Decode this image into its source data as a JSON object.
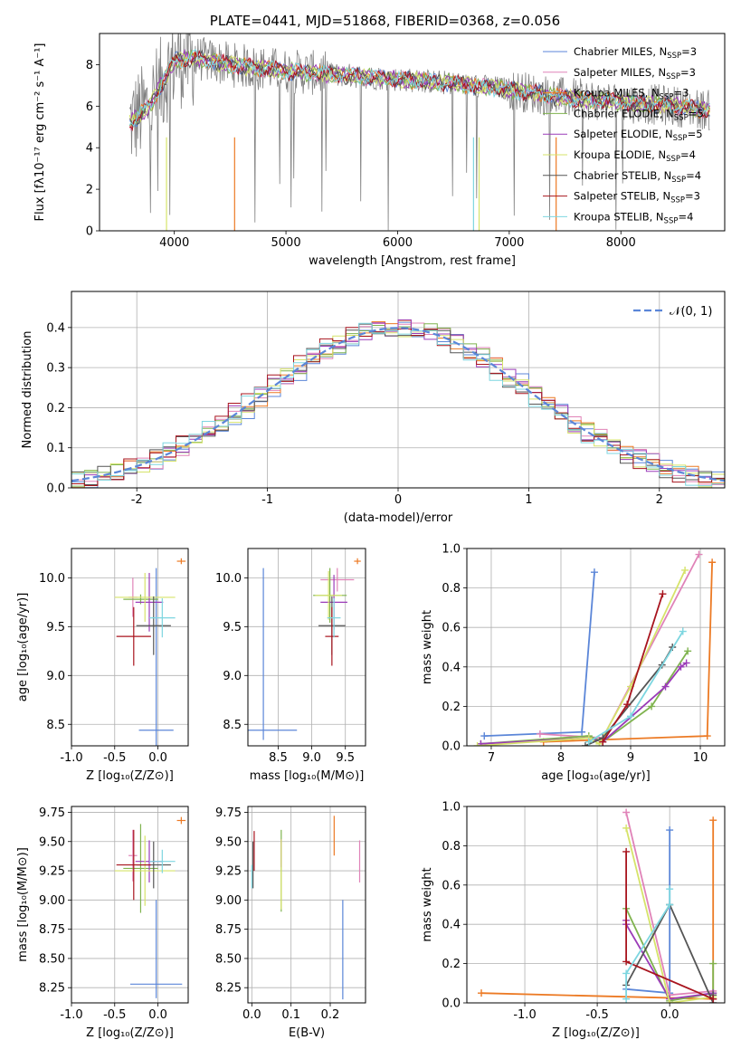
{
  "chart_data": [
    {
      "id": "spectrum",
      "type": "line",
      "title": "PLATE=0441, MJD=51868, FIBERID=0368, z=0.056",
      "xlabel": "wavelength [Angstrom, rest frame]",
      "ylabel": "Flux [fλ10⁻¹⁷ erg cm⁻² s⁻¹ A⁻¹]",
      "xlim": [
        3330,
        8930
      ],
      "ylim": [
        0,
        9.5
      ],
      "xticks": [
        4000,
        5000,
        6000,
        7000,
        8000
      ],
      "yticks": [
        0,
        2,
        4,
        6,
        8
      ],
      "grid": false,
      "legend_position": "right",
      "data_series": {
        "name": "",
        "color": "#808080"
      },
      "model_continuum": {
        "x": [
          3600,
          3700,
          3800,
          3900,
          4000,
          4200,
          4500,
          5000,
          5500,
          6000,
          6500,
          7000,
          7500,
          8000,
          8500,
          8800
        ],
        "y": [
          5.2,
          5.6,
          6.2,
          7.2,
          8.2,
          8.3,
          8.0,
          7.7,
          7.5,
          7.3,
          7.1,
          6.8,
          6.4,
          6.2,
          6.0,
          5.8
        ]
      },
      "legend": [
        {
          "name": "Chabrier MILES, N",
          "sub": "SSP",
          "suffix": "=3",
          "color": "#5b86d8"
        },
        {
          "name": "Salpeter MILES, N",
          "sub": "SSP",
          "suffix": "=3",
          "color": "#e083b8"
        },
        {
          "name": "Kroupa MILES, N",
          "sub": "SSP",
          "suffix": "=3",
          "color": "#ec7a24"
        },
        {
          "name": "Chabrier ELODIE, N",
          "sub": "SSP",
          "suffix": "=5",
          "color": "#7fb34e"
        },
        {
          "name": "Salpeter ELODIE, N",
          "sub": "SSP",
          "suffix": "=5",
          "color": "#9b3bb8"
        },
        {
          "name": "Kroupa ELODIE, N",
          "sub": "SSP",
          "suffix": "=4",
          "color": "#d6e36a"
        },
        {
          "name": "Chabrier STELIB, N",
          "sub": "SSP",
          "suffix": "=4",
          "color": "#555555"
        },
        {
          "name": "Salpeter STELIB, N",
          "sub": "SSP",
          "suffix": "=3",
          "color": "#a8141e"
        },
        {
          "name": "Kroupa STELIB, N",
          "sub": "SSP",
          "suffix": "=4",
          "color": "#7dd6e0"
        }
      ]
    },
    {
      "id": "residuals",
      "type": "histogram",
      "xlabel": "(data-model)/error",
      "ylabel": "Normed distribution",
      "xlim": [
        -2.5,
        2.5
      ],
      "ylim": [
        0,
        0.49
      ],
      "xticks": [
        -2,
        -1,
        0,
        1,
        2
      ],
      "yticks": [
        0.0,
        0.1,
        0.2,
        0.3,
        0.4
      ],
      "grid": true,
      "reference_curve": {
        "name": "𝒩(0, 1)",
        "mean": 0,
        "sigma": 1,
        "color": "#5b86d8"
      },
      "legend_position": "top-right"
    },
    {
      "id": "age-vs-Z",
      "type": "errorbar",
      "xlabel": "Z [log₁₀(Z/Z⊙)]",
      "ylabel": "age  [log₁₀(age/yr)]",
      "xlim": [
        -1.0,
        0.35
      ],
      "ylim": [
        8.28,
        10.3
      ],
      "xticks": [
        -1.0,
        -0.5,
        0.0
      ],
      "yticks": [
        8.5,
        9.0,
        9.5,
        10.0
      ],
      "grid": true,
      "points": [
        {
          "model": "Chabrier MILES",
          "x": -0.02,
          "xerr": 0.2,
          "y": 8.44,
          "yerr": [
            0.44,
            1.66
          ]
        },
        {
          "model": "Salpeter MILES",
          "x": -0.29,
          "xerr": 0.05,
          "y": 9.8,
          "yerr": 0.2
        },
        {
          "model": "Kroupa MILES",
          "x": 0.27,
          "xerr": 0.05,
          "y": 10.17,
          "yerr": 0.03
        },
        {
          "model": "Chabrier ELODIE",
          "x": -0.2,
          "xerr": 0.2,
          "y": 9.78,
          "yerr": 0.05
        },
        {
          "model": "Salpeter ELODIE",
          "x": -0.1,
          "xerr": 0.16,
          "y": 9.75,
          "yerr": 0.3
        },
        {
          "model": "Kroupa ELODIE",
          "x": -0.15,
          "xerr": 0.35,
          "y": 9.8,
          "yerr": 0.25
        },
        {
          "model": "Chabrier STELIB",
          "x": -0.05,
          "xerr": 0.2,
          "y": 9.51,
          "yerr": 0.3
        },
        {
          "model": "Salpeter STELIB",
          "x": -0.28,
          "xerr": 0.2,
          "y": 9.4,
          "yerr": 0.3
        },
        {
          "model": "Kroupa STELIB",
          "x": 0.05,
          "xerr": 0.15,
          "y": 9.59,
          "yerr": 0.2
        }
      ]
    },
    {
      "id": "age-vs-mass",
      "type": "errorbar",
      "xlabel": "mass [log₁₀(M/M⊙)]",
      "ylabel": "",
      "xlim": [
        8.05,
        9.8
      ],
      "ylim": [
        8.28,
        10.3
      ],
      "xticks": [
        8.5,
        9.0,
        9.5
      ],
      "yticks": [
        8.5,
        9.0,
        9.5,
        10.0
      ],
      "grid": true,
      "points": [
        {
          "model": "Chabrier MILES",
          "x": 8.28,
          "xerr": 0.5,
          "y": 8.44,
          "yerr": [
            0.1,
            1.66
          ]
        },
        {
          "model": "Salpeter MILES",
          "x": 9.38,
          "xerr": 0.25,
          "y": 9.98,
          "yerr": 0.12
        },
        {
          "model": "Kroupa MILES",
          "x": 9.68,
          "xerr": 0.05,
          "y": 10.17,
          "yerr": 0.03
        },
        {
          "model": "Chabrier ELODIE",
          "x": 9.27,
          "xerr": 0.25,
          "y": 9.82,
          "yerr": 0.28
        },
        {
          "model": "Salpeter ELODIE",
          "x": 9.33,
          "xerr": 0.2,
          "y": 9.75,
          "yerr": 0.28
        },
        {
          "model": "Kroupa ELODIE",
          "x": 9.25,
          "xerr": 0.2,
          "y": 9.82,
          "yerr": 0.25
        },
        {
          "model": "Chabrier STELIB",
          "x": 9.3,
          "xerr": 0.2,
          "y": 9.51,
          "yerr": 0.3
        },
        {
          "model": "Salpeter STELIB",
          "x": 9.3,
          "xerr": 0.1,
          "y": 9.4,
          "yerr": 0.3
        },
        {
          "model": "Kroupa STELIB",
          "x": 9.33,
          "xerr": 0.1,
          "y": 9.59,
          "yerr": 0.2
        }
      ]
    },
    {
      "id": "weight-vs-age",
      "type": "line",
      "xlabel": "age  [log₁₀(age/yr)]",
      "ylabel": "mass weight",
      "xlim": [
        6.65,
        10.35
      ],
      "ylim": [
        0,
        1.0
      ],
      "xticks": [
        7,
        8,
        9,
        10
      ],
      "yticks": [
        0.0,
        0.2,
        0.4,
        0.6,
        0.8,
        1.0
      ],
      "grid": true,
      "series": [
        {
          "name": "Chabrier MILES",
          "color": "#5b86d8",
          "x": [
            6.9,
            8.3,
            8.48
          ],
          "y": [
            0.05,
            0.07,
            0.88
          ]
        },
        {
          "name": "Salpeter MILES",
          "color": "#e083b8",
          "x": [
            7.7,
            8.6,
            9.98
          ],
          "y": [
            0.06,
            0.04,
            0.97
          ]
        },
        {
          "name": "Kroupa MILES",
          "color": "#ec7a24",
          "x": [
            7.75,
            10.1,
            10.17
          ],
          "y": [
            0.02,
            0.05,
            0.93
          ]
        },
        {
          "name": "Chabrier ELODIE",
          "color": "#7fb34e",
          "x": [
            6.85,
            8.4,
            8.6,
            9.3,
            9.82
          ],
          "y": [
            0.01,
            0.05,
            0.02,
            0.2,
            0.48
          ]
        },
        {
          "name": "Salpeter ELODIE",
          "color": "#9b3bb8",
          "x": [
            6.85,
            8.4,
            8.6,
            9.5,
            9.72,
            9.8
          ],
          "y": [
            0.01,
            0.04,
            0.02,
            0.3,
            0.4,
            0.42
          ]
        },
        {
          "name": "Kroupa ELODIE",
          "color": "#d6e36a",
          "x": [
            6.8,
            8.4,
            8.55,
            9.0,
            9.78
          ],
          "y": [
            0.0,
            0.04,
            0.01,
            0.3,
            0.89
          ]
        },
        {
          "name": "Chabrier STELIB",
          "color": "#555555",
          "x": [
            8.35,
            8.6,
            9.45,
            9.6
          ],
          "y": [
            0.0,
            0.04,
            0.41,
            0.5
          ]
        },
        {
          "name": "Salpeter STELIB",
          "color": "#a8141e",
          "x": [
            8.6,
            8.95,
            9.46
          ],
          "y": [
            0.02,
            0.21,
            0.77
          ]
        },
        {
          "name": "Kroupa STELIB",
          "color": "#7dd6e0",
          "x": [
            8.4,
            9.0,
            9.75
          ],
          "y": [
            0.02,
            0.15,
            0.58
          ]
        }
      ]
    },
    {
      "id": "mass-vs-Z",
      "type": "errorbar",
      "xlabel": "Z [log₁₀(Z/Z⊙)]",
      "ylabel": "mass [log₁₀(M/M⊙)]",
      "xlim": [
        -1.0,
        0.35
      ],
      "ylim": [
        8.12,
        9.8
      ],
      "xticks": [
        -1.0,
        -0.5,
        0.0
      ],
      "yticks": [
        8.25,
        8.5,
        8.75,
        9.0,
        9.25,
        9.5,
        9.75
      ],
      "grid": true,
      "points": [
        {
          "model": "Chabrier MILES",
          "x": -0.02,
          "xerr": 0.3,
          "y": 8.28,
          "yerr": [
            0.12,
            0.72
          ]
        },
        {
          "model": "Salpeter MILES",
          "x": -0.29,
          "xerr": 0.05,
          "y": 9.38,
          "yerr": 0.22
        },
        {
          "model": "Kroupa MILES",
          "x": 0.27,
          "xerr": 0.05,
          "y": 9.68,
          "yerr": 0.03
        },
        {
          "model": "Chabrier ELODIE",
          "x": -0.2,
          "xerr": 0.2,
          "y": 9.27,
          "yerr": 0.38
        },
        {
          "model": "Salpeter ELODIE",
          "x": -0.1,
          "xerr": 0.16,
          "y": 9.33,
          "yerr": 0.18
        },
        {
          "model": "Kroupa ELODIE",
          "x": -0.15,
          "xerr": 0.35,
          "y": 9.25,
          "yerr": 0.3
        },
        {
          "model": "Chabrier STELIB",
          "x": -0.05,
          "xerr": 0.2,
          "y": 9.3,
          "yerr": 0.2
        },
        {
          "model": "Salpeter STELIB",
          "x": -0.28,
          "xerr": 0.2,
          "y": 9.3,
          "yerr": 0.3
        },
        {
          "model": "Kroupa STELIB",
          "x": 0.05,
          "xerr": 0.15,
          "y": 9.33,
          "yerr": 0.1
        }
      ]
    },
    {
      "id": "mass-vs-ebv",
      "type": "errorbar",
      "xlabel": "E(B-V)",
      "ylabel": "",
      "xlim": [
        -0.01,
        0.29
      ],
      "ylim": [
        8.12,
        9.8
      ],
      "xticks": [
        0.0,
        0.1,
        0.2
      ],
      "yticks": [
        8.25,
        8.5,
        8.75,
        9.0,
        9.25,
        9.5,
        9.75
      ],
      "grid": true,
      "points": [
        {
          "model": "Chabrier MILES",
          "x": 0.232,
          "y": 8.44,
          "yerr": [
            0.29,
            0.56
          ]
        },
        {
          "model": "Salpeter MILES",
          "x": 0.275,
          "y": 9.33,
          "yerr": 0.18
        },
        {
          "model": "Kroupa MILES",
          "x": 0.21,
          "y": 9.55,
          "yerr": 0.17
        },
        {
          "model": "Chabrier ELODIE",
          "x": 0.075,
          "y": 9.25,
          "yerr": 0.35
        },
        {
          "model": "Salpeter ELODIE",
          "x": 0.075,
          "y": 9.4,
          "yerr": 0.12
        },
        {
          "model": "Kroupa ELODIE",
          "x": 0.075,
          "y": 9.22,
          "yerr": 0.3
        },
        {
          "model": "Chabrier STELIB",
          "x": 0.003,
          "y": 9.3,
          "yerr": 0.2
        },
        {
          "model": "Salpeter STELIB",
          "x": 0.006,
          "y": 9.42,
          "yerr": 0.17
        },
        {
          "model": "Kroupa STELIB",
          "x": 0.0,
          "y": 9.2,
          "yerr": 0.1
        }
      ]
    },
    {
      "id": "weight-vs-Z",
      "type": "line",
      "xlabel": "Z [log₁₀(Z/Z⊙)]",
      "ylabel": "mass weight",
      "xlim": [
        -1.4,
        0.38
      ],
      "ylim": [
        0,
        1.0
      ],
      "xticks": [
        -1.0,
        -0.5,
        0.0
      ],
      "yticks": [
        0.0,
        0.2,
        0.4,
        0.6,
        0.8,
        1.0
      ],
      "grid": true,
      "series": [
        {
          "name": "Chabrier MILES",
          "color": "#5b86d8",
          "x": [
            -0.3,
            0.0,
            0.0
          ],
          "y": [
            0.07,
            0.05,
            0.88
          ]
        },
        {
          "name": "Salpeter MILES",
          "color": "#e083b8",
          "x": [
            -0.3,
            0.0,
            0.3
          ],
          "y": [
            0.97,
            0.04,
            0.06
          ]
        },
        {
          "name": "Kroupa MILES",
          "color": "#ec7a24",
          "x": [
            -1.3,
            0.3,
            0.3
          ],
          "y": [
            0.05,
            0.02,
            0.93
          ]
        },
        {
          "name": "Chabrier ELODIE",
          "color": "#7fb34e",
          "x": [
            -0.3,
            0.0,
            0.3,
            0.3
          ],
          "y": [
            0.48,
            0.01,
            0.05,
            0.2
          ]
        },
        {
          "name": "Salpeter ELODIE",
          "color": "#9b3bb8",
          "x": [
            -0.3,
            -0.3,
            0.0,
            0.3
          ],
          "y": [
            0.42,
            0.4,
            0.02,
            0.05
          ]
        },
        {
          "name": "Kroupa ELODIE",
          "color": "#d6e36a",
          "x": [
            -0.3,
            0.0,
            0.3
          ],
          "y": [
            0.89,
            0.0,
            0.03
          ]
        },
        {
          "name": "Chabrier STELIB",
          "color": "#555555",
          "x": [
            -0.3,
            0.0,
            0.3,
            0.3
          ],
          "y": [
            0.09,
            0.5,
            0.0,
            0.04
          ]
        },
        {
          "name": "Salpeter STELIB",
          "color": "#a8141e",
          "x": [
            -0.3,
            -0.3,
            0.3
          ],
          "y": [
            0.77,
            0.21,
            0.02
          ]
        },
        {
          "name": "Kroupa STELIB",
          "color": "#7dd6e0",
          "x": [
            -0.3,
            -0.3,
            0.0,
            0.0
          ],
          "y": [
            0.02,
            0.15,
            0.5,
            0.58
          ]
        }
      ]
    }
  ]
}
